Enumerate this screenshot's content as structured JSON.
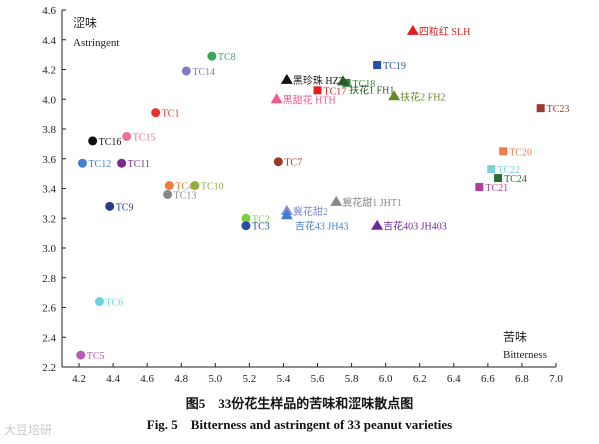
{
  "chart_data": {
    "type": "scatter",
    "xlabel_cn": "苦味",
    "xlabel_en": "Bitterness",
    "ylabel_cn": "涩味",
    "ylabel_en": "Astringent",
    "xlim": [
      4.1,
      7.0
    ],
    "ylim": [
      2.2,
      4.6
    ],
    "xticks": [
      "4.2",
      "4.4",
      "4.6",
      "4.8",
      "5.0",
      "5.2",
      "5.4",
      "5.6",
      "5.8",
      "6.0",
      "6.2",
      "6.4",
      "6.6",
      "6.8",
      "7.0"
    ],
    "yticks": [
      "2.2",
      "2.4",
      "2.6",
      "2.8",
      "3.0",
      "3.2",
      "3.4",
      "3.6",
      "3.8",
      "4.0",
      "4.2",
      "4.4",
      "4.6"
    ],
    "grid": false,
    "points": [
      {
        "label": "TC1",
        "x": 4.65,
        "y": 3.91,
        "color": "#e63232",
        "marker": "circle",
        "pos": "right"
      },
      {
        "label": "TC5",
        "x": 4.21,
        "y": 2.28,
        "color": "#b65bb2",
        "marker": "circle",
        "pos": "right"
      },
      {
        "label": "TC6",
        "x": 4.32,
        "y": 2.64,
        "color": "#6cd3e0",
        "marker": "circle",
        "pos": "right"
      },
      {
        "label": "TC8",
        "x": 4.98,
        "y": 4.29,
        "color": "#3aa85a",
        "marker": "circle",
        "pos": "right"
      },
      {
        "label": "TC9",
        "x": 4.38,
        "y": 3.28,
        "color": "#2c3a8a",
        "marker": "circle",
        "pos": "right"
      },
      {
        "label": "TC10",
        "x": 4.88,
        "y": 3.42,
        "color": "#8fae3a",
        "marker": "circle",
        "pos": "right"
      },
      {
        "label": "TC11",
        "x": 4.45,
        "y": 3.57,
        "color": "#7b2a8e",
        "marker": "circle",
        "pos": "right"
      },
      {
        "label": "TC12",
        "x": 4.22,
        "y": 3.57,
        "color": "#3f7fd0",
        "marker": "circle",
        "pos": "right"
      },
      {
        "label": "TC13",
        "x": 4.72,
        "y": 3.36,
        "color": "#888888",
        "marker": "circle",
        "pos": "right"
      },
      {
        "label": "TC14",
        "x": 4.83,
        "y": 4.19,
        "color": "#7b7bc8",
        "marker": "circle",
        "pos": "right"
      },
      {
        "label": "TC15",
        "x": 4.48,
        "y": 3.75,
        "color": "#f07090",
        "marker": "circle",
        "pos": "right"
      },
      {
        "label": "TC16",
        "x": 4.28,
        "y": 3.72,
        "color": "#111111",
        "marker": "circle",
        "pos": "right"
      },
      {
        "label": "TC2",
        "x": 5.18,
        "y": 3.2,
        "color": "#7ccf3e",
        "marker": "circle",
        "pos": "right"
      },
      {
        "label": "TC3",
        "x": 5.18,
        "y": 3.15,
        "color": "#2850a8",
        "marker": "circle",
        "pos": "right"
      },
      {
        "label": "TC4",
        "x": 4.73,
        "y": 3.42,
        "color": "#f07a40",
        "marker": "circle",
        "pos": "right"
      },
      {
        "label": "TC7",
        "x": 5.37,
        "y": 3.58,
        "color": "#9a3a2a",
        "marker": "circle",
        "pos": "right"
      },
      {
        "label": "TC17",
        "x": 5.6,
        "y": 4.06,
        "color": "#e02020",
        "marker": "square",
        "pos": "right"
      },
      {
        "label": "TC19",
        "x": 5.95,
        "y": 4.23,
        "color": "#2850a8",
        "marker": "square",
        "pos": "right"
      },
      {
        "label": "TC20",
        "x": 6.69,
        "y": 3.65,
        "color": "#f07a50",
        "marker": "square",
        "pos": "right"
      },
      {
        "label": "TC21",
        "x": 6.55,
        "y": 3.41,
        "color": "#b040a0",
        "marker": "square",
        "pos": "right"
      },
      {
        "label": "TC22",
        "x": 6.62,
        "y": 3.53,
        "color": "#7ad0d8",
        "marker": "square",
        "pos": "right"
      },
      {
        "label": "TC23",
        "x": 6.91,
        "y": 3.94,
        "color": "#9a3a2a",
        "marker": "square",
        "pos": "right"
      },
      {
        "label": "TC24",
        "x": 6.66,
        "y": 3.47,
        "color": "#2a6a3a",
        "marker": "square",
        "pos": "right"
      },
      {
        "label": "TC18",
        "x": 5.77,
        "y": 4.11,
        "color": "#2a8a3a",
        "marker": "square",
        "pos": "right"
      },
      {
        "label": "黑珍珠 HZZ",
        "x": 5.42,
        "y": 4.13,
        "color": "#111111",
        "marker": "triangle",
        "pos": "right"
      },
      {
        "label": "黑甜花 HTH",
        "x": 5.36,
        "y": 4.0,
        "color": "#f05a8a",
        "marker": "triangle",
        "pos": "right"
      },
      {
        "label": "扶花1 FH1",
        "x": 5.75,
        "y": 4.12,
        "color": "#2a5a2a",
        "marker": "triangle",
        "pos": "below-left"
      },
      {
        "label": "扶花2 FH2",
        "x": 6.05,
        "y": 4.02,
        "color": "#6a8a2a",
        "marker": "triangle",
        "pos": "right"
      },
      {
        "label": "四粒红 SLH",
        "x": 6.16,
        "y": 4.46,
        "color": "#e02020",
        "marker": "triangle",
        "pos": "right"
      },
      {
        "label": "冀花甜1 JHT1",
        "x": 5.71,
        "y": 3.31,
        "color": "#888888",
        "marker": "triangle",
        "pos": "right"
      },
      {
        "label": "冀花甜2",
        "x": 5.42,
        "y": 3.25,
        "color": "#7a8ad8",
        "marker": "triangle",
        "pos": "right"
      },
      {
        "label": "吉花43 JH43",
        "x": 5.42,
        "y": 3.22,
        "color": "#3f7fd0",
        "marker": "triangle",
        "pos": "below-right"
      },
      {
        "label": "吉花403 JH403",
        "x": 5.95,
        "y": 3.15,
        "color": "#6a2a9a",
        "marker": "triangle",
        "pos": "right"
      }
    ]
  },
  "caption": {
    "cn": "图5　33份花生样品的苦味和涩味散点图",
    "en": "Fig. 5　Bitterness and astringent of 33 peanut varieties"
  },
  "watermark": "大豆培研"
}
